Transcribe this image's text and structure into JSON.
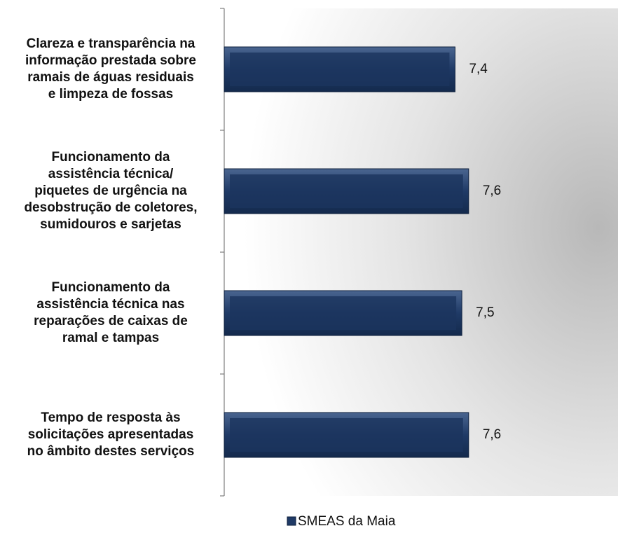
{
  "chart_data": {
    "type": "bar",
    "orientation": "horizontal",
    "categories": [
      "Clareza e transparência na\ninformação prestada sobre\nramais de águas residuais\ne limpeza de fossas",
      "Funcionamento da\nassistência técnica/\npiquetes de urgência na\ndesobstrução de coletores,\nsumidouros e sarjetas",
      "Funcionamento da\nassistência técnica nas\nreparações de caixas de\nramal e tampas",
      "Tempo de resposta às\nsolicitações apresentadas\nno âmbito destes serviços"
    ],
    "series": [
      {
        "name": "SMEAS da Maia",
        "color": "#1f3a66",
        "values": [
          7.4,
          7.6,
          7.5,
          7.6
        ],
        "value_labels": [
          "7,4",
          "7,6",
          "7,5",
          "7,6"
        ]
      }
    ],
    "xlim": [
      4,
      9.8
    ],
    "legend": "bottom"
  }
}
